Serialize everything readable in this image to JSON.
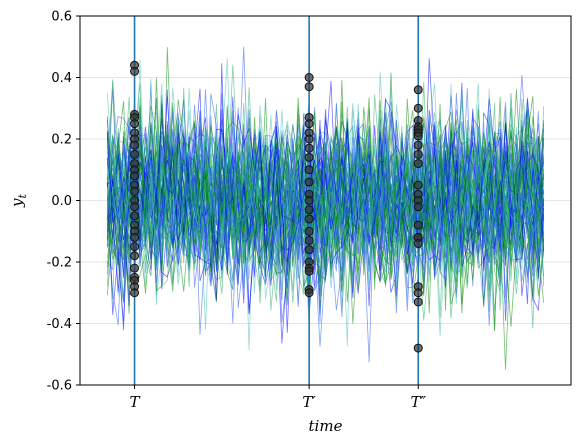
{
  "chart_data": {
    "type": "line",
    "title": "",
    "xlabel": "time",
    "ylabel": "y_t",
    "ylim": [
      -0.6,
      0.6
    ],
    "xlim": [
      -5,
      85
    ],
    "n_steps": 80,
    "grid": "horizontal",
    "y_ticks": [
      "-0.6",
      "-0.4",
      "-0.2",
      "0.0",
      "0.2",
      "0.4",
      "0.6"
    ],
    "y_tick_values": [
      -0.6,
      -0.4,
      -0.2,
      0.0,
      0.2,
      0.4,
      0.6
    ],
    "x_markers": [
      {
        "label": "T",
        "x": 5
      },
      {
        "label": "T′",
        "x": 37
      },
      {
        "label": "T″",
        "x": 57
      }
    ],
    "series_count": 80,
    "series_colors": [
      "#0000ff",
      "#2255ee",
      "#008800",
      "#22aa66",
      "#44bbbb"
    ],
    "marker_line_color": "#1f77b4",
    "sample_point_color": "#333333",
    "sample_points": {
      "T": [
        0.44,
        0.42,
        0.28,
        0.27,
        0.25,
        0.22,
        0.2,
        0.18,
        0.15,
        0.12,
        0.1,
        0.08,
        0.05,
        0.03,
        0.0,
        -0.02,
        -0.05,
        -0.08,
        -0.1,
        -0.12,
        -0.15,
        -0.18,
        -0.22,
        -0.25,
        -0.26,
        -0.28,
        -0.3
      ],
      "T′": [
        0.4,
        0.37,
        0.27,
        0.25,
        0.22,
        0.2,
        0.17,
        0.14,
        0.1,
        0.06,
        0.02,
        0.0,
        -0.03,
        -0.06,
        -0.1,
        -0.13,
        -0.16,
        -0.2,
        -0.22,
        -0.23,
        -0.29,
        -0.3
      ],
      "T″": [
        0.36,
        0.3,
        0.26,
        0.24,
        0.23,
        0.22,
        0.21,
        0.18,
        0.15,
        0.12,
        0.05,
        0.02,
        0.0,
        -0.02,
        -0.08,
        -0.12,
        -0.12,
        -0.14,
        -0.28,
        -0.3,
        -0.33,
        -0.48
      ]
    }
  }
}
